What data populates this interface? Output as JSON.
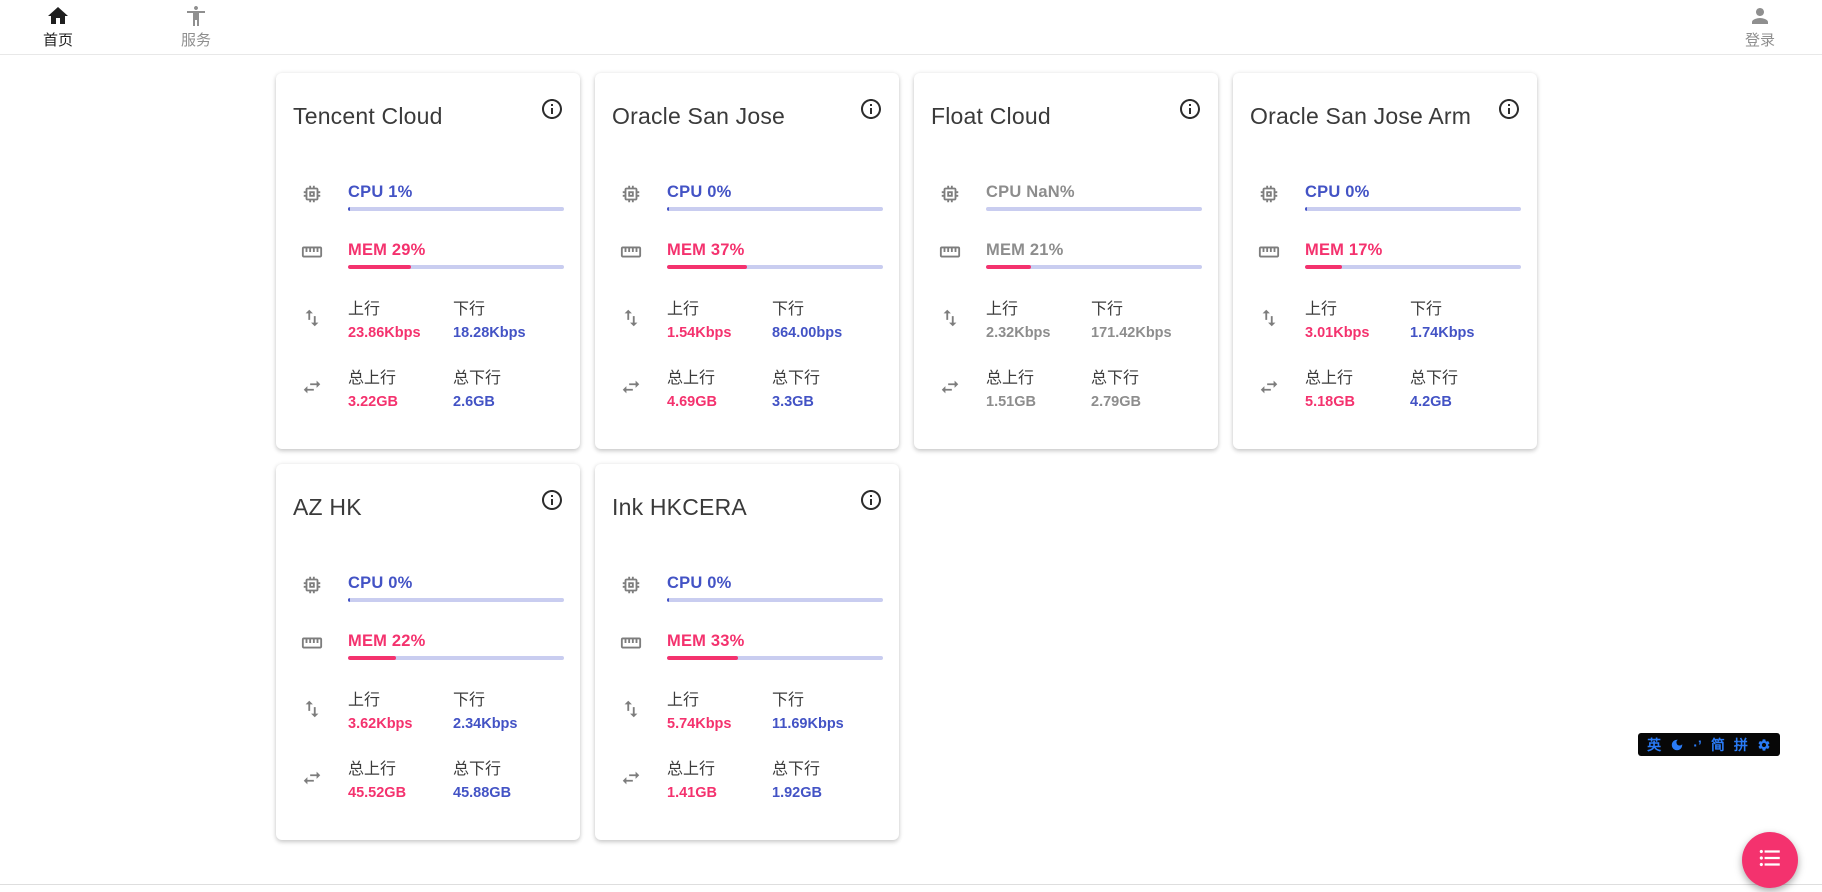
{
  "navbar": {
    "home": {
      "label": "首页"
    },
    "services": {
      "label": "服务"
    },
    "login": {
      "label": "登录"
    }
  },
  "labels": {
    "up": "上行",
    "down": "下行",
    "total_up": "总上行",
    "total_down": "总下行"
  },
  "colors": {
    "blue": "#4353c5",
    "pink": "#f4326e",
    "bar_track": "#c9cdf0",
    "offline_gray": "#8d8d8d"
  },
  "servers": [
    {
      "name": "Tencent Cloud",
      "offline": false,
      "cpu_text": "CPU 1%",
      "cpu_pct": 1,
      "mem_text": "MEM 29%",
      "mem_pct": 29,
      "up": "23.86Kbps",
      "down": "18.28Kbps",
      "total_up": "3.22GB",
      "total_down": "2.6GB"
    },
    {
      "name": "Oracle San Jose",
      "offline": false,
      "cpu_text": "CPU 0%",
      "cpu_pct": 0,
      "mem_text": "MEM 37%",
      "mem_pct": 37,
      "up": "1.54Kbps",
      "down": "864.00bps",
      "total_up": "4.69GB",
      "total_down": "3.3GB"
    },
    {
      "name": "Float Cloud",
      "offline": true,
      "cpu_text": "CPU NaN%",
      "cpu_pct": null,
      "mem_text": "MEM 21%",
      "mem_pct": 21,
      "up": "2.32Kbps",
      "down": "171.42Kbps",
      "total_up": "1.51GB",
      "total_down": "2.79GB"
    },
    {
      "name": "Oracle San Jose Arm",
      "offline": false,
      "cpu_text": "CPU 0%",
      "cpu_pct": 0,
      "mem_text": "MEM 17%",
      "mem_pct": 17,
      "up": "3.01Kbps",
      "down": "1.74Kbps",
      "total_up": "5.18GB",
      "total_down": "4.2GB"
    },
    {
      "name": "AZ HK",
      "offline": false,
      "cpu_text": "CPU 0%",
      "cpu_pct": 0,
      "mem_text": "MEM 22%",
      "mem_pct": 22,
      "up": "3.62Kbps",
      "down": "2.34Kbps",
      "total_up": "45.52GB",
      "total_down": "45.88GB"
    },
    {
      "name": "Ink HKCERA",
      "offline": false,
      "cpu_text": "CPU 0%",
      "cpu_pct": 0,
      "mem_text": "MEM 33%",
      "mem_pct": 33,
      "up": "5.74Kbps",
      "down": "11.69Kbps",
      "total_up": "1.41GB",
      "total_down": "1.92GB"
    }
  ],
  "ime": {
    "lang": "英",
    "punct": "·’",
    "simplified": "简",
    "pinyin": "拼"
  }
}
